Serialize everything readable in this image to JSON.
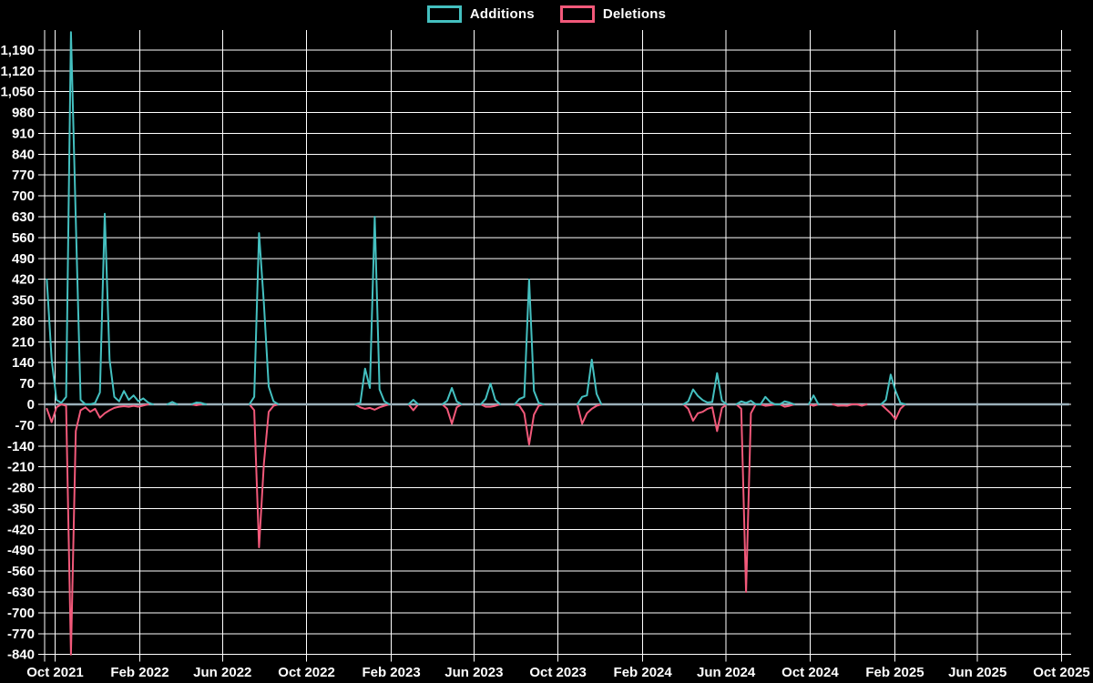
{
  "legend": [
    {
      "label": "Additions",
      "color": "#44c0c0"
    },
    {
      "label": "Deletions",
      "color": "#f2597a"
    }
  ],
  "colors": {
    "background": "#000000",
    "grid": "#ffffff",
    "axis_text": "#ffffff",
    "zero_line": "#9bb0ba",
    "additions": "#44c0c0",
    "deletions": "#f2597a"
  },
  "chart_data": {
    "type": "line",
    "title": "",
    "xlabel": "",
    "ylabel": "",
    "legend_position": "top-center",
    "grid": true,
    "y_axis": {
      "min": -840,
      "max": 1190,
      "step": 70,
      "tick_labels": [
        "1,190",
        "1,120",
        "1,050",
        "980",
        "910",
        "840",
        "770",
        "700",
        "630",
        "560",
        "490",
        "420",
        "350",
        "280",
        "210",
        "140",
        "70",
        "0",
        "-70",
        "-140",
        "-210",
        "-280",
        "-350",
        "-420",
        "-490",
        "-560",
        "-630",
        "-700",
        "-770",
        "-840"
      ]
    },
    "x_axis": {
      "tick_labels": [
        "Oct 2021",
        "Feb 2022",
        "Jun 2022",
        "Oct 2022",
        "Feb 2023",
        "Jun 2023",
        "Oct 2023",
        "Feb 2024",
        "Jun 2024",
        "Oct 2024",
        "Feb 2025",
        "Jun 2025",
        "Oct 2025"
      ],
      "tick_dates": [
        "2021-10-01",
        "2022-02-01",
        "2022-06-01",
        "2022-10-01",
        "2023-02-01",
        "2023-06-01",
        "2023-10-01",
        "2024-02-01",
        "2024-06-01",
        "2024-10-01",
        "2025-02-01",
        "2025-06-01",
        "2025-10-01"
      ]
    },
    "series_names": [
      "Additions",
      "Deletions"
    ],
    "weeks_start": "2021-09-19",
    "weeks_end": "2025-10-12",
    "other_weeks_value": 0,
    "weeks_note": "weekly points [week_start_date, additions, deletions]; all weeks not listed are 0,0",
    "weeks": [
      [
        "2021-09-19",
        420,
        -15
      ],
      [
        "2021-09-26",
        150,
        -60
      ],
      [
        "2021-10-03",
        15,
        -10
      ],
      [
        "2021-10-10",
        5,
        0
      ],
      [
        "2021-10-17",
        25,
        -5
      ],
      [
        "2021-10-24",
        1250,
        -840
      ],
      [
        "2021-10-31",
        620,
        -90
      ],
      [
        "2021-11-07",
        15,
        -20
      ],
      [
        "2021-11-14",
        0,
        -10
      ],
      [
        "2021-11-21",
        0,
        -25
      ],
      [
        "2021-11-28",
        5,
        -15
      ],
      [
        "2021-12-05",
        40,
        -45
      ],
      [
        "2021-12-12",
        640,
        -30
      ],
      [
        "2021-12-19",
        150,
        -20
      ],
      [
        "2021-12-26",
        25,
        -12
      ],
      [
        "2022-01-02",
        10,
        -8
      ],
      [
        "2022-01-09",
        45,
        -6
      ],
      [
        "2022-01-16",
        15,
        -8
      ],
      [
        "2022-01-23",
        30,
        -5
      ],
      [
        "2022-01-30",
        10,
        -8
      ],
      [
        "2022-02-06",
        20,
        -4
      ],
      [
        "2022-02-13",
        6,
        0
      ],
      [
        "2022-03-20",
        8,
        0
      ],
      [
        "2022-04-24",
        6,
        -3
      ],
      [
        "2022-05-01",
        5,
        0
      ],
      [
        "2022-07-17",
        25,
        -20
      ],
      [
        "2022-07-24",
        575,
        -480
      ],
      [
        "2022-07-31",
        340,
        -200
      ],
      [
        "2022-08-07",
        60,
        -25
      ],
      [
        "2022-08-14",
        10,
        -5
      ],
      [
        "2022-12-18",
        5,
        -10
      ],
      [
        "2022-12-25",
        120,
        -15
      ],
      [
        "2023-01-01",
        55,
        -12
      ],
      [
        "2023-01-08",
        630,
        -18
      ],
      [
        "2023-01-15",
        50,
        -10
      ],
      [
        "2023-01-22",
        10,
        -5
      ],
      [
        "2023-03-05",
        15,
        -20
      ],
      [
        "2023-04-23",
        12,
        -15
      ],
      [
        "2023-04-30",
        55,
        -65
      ],
      [
        "2023-05-07",
        10,
        -10
      ],
      [
        "2023-06-18",
        18,
        -8
      ],
      [
        "2023-06-25",
        70,
        -8
      ],
      [
        "2023-07-02",
        15,
        -5
      ],
      [
        "2023-08-06",
        18,
        -5
      ],
      [
        "2023-08-13",
        25,
        -30
      ],
      [
        "2023-08-20",
        420,
        -135
      ],
      [
        "2023-08-27",
        45,
        -35
      ],
      [
        "2023-09-03",
        5,
        -5
      ],
      [
        "2023-11-05",
        25,
        -65
      ],
      [
        "2023-11-12",
        30,
        -30
      ],
      [
        "2023-11-19",
        150,
        -15
      ],
      [
        "2023-11-26",
        35,
        -5
      ],
      [
        "2024-04-07",
        10,
        -15
      ],
      [
        "2024-04-14",
        50,
        -55
      ],
      [
        "2024-04-21",
        28,
        -30
      ],
      [
        "2024-04-28",
        14,
        -25
      ],
      [
        "2024-05-05",
        6,
        -15
      ],
      [
        "2024-05-12",
        8,
        -10
      ],
      [
        "2024-05-19",
        105,
        -90
      ],
      [
        "2024-05-26",
        12,
        -12
      ],
      [
        "2024-06-23",
        10,
        -15
      ],
      [
        "2024-06-30",
        5,
        -630
      ],
      [
        "2024-07-07",
        12,
        -30
      ],
      [
        "2024-07-28",
        25,
        -5
      ],
      [
        "2024-08-04",
        8,
        -3
      ],
      [
        "2024-08-25",
        10,
        -8
      ],
      [
        "2024-09-01",
        6,
        -5
      ],
      [
        "2024-10-06",
        30,
        -5
      ],
      [
        "2024-11-10",
        0,
        -5
      ],
      [
        "2024-11-17",
        0,
        -4
      ],
      [
        "2024-11-24",
        0,
        -5
      ],
      [
        "2024-12-15",
        0,
        -5
      ],
      [
        "2025-01-19",
        15,
        -15
      ],
      [
        "2025-01-26",
        100,
        -30
      ],
      [
        "2025-02-02",
        45,
        -50
      ],
      [
        "2025-02-09",
        5,
        -15
      ]
    ]
  }
}
